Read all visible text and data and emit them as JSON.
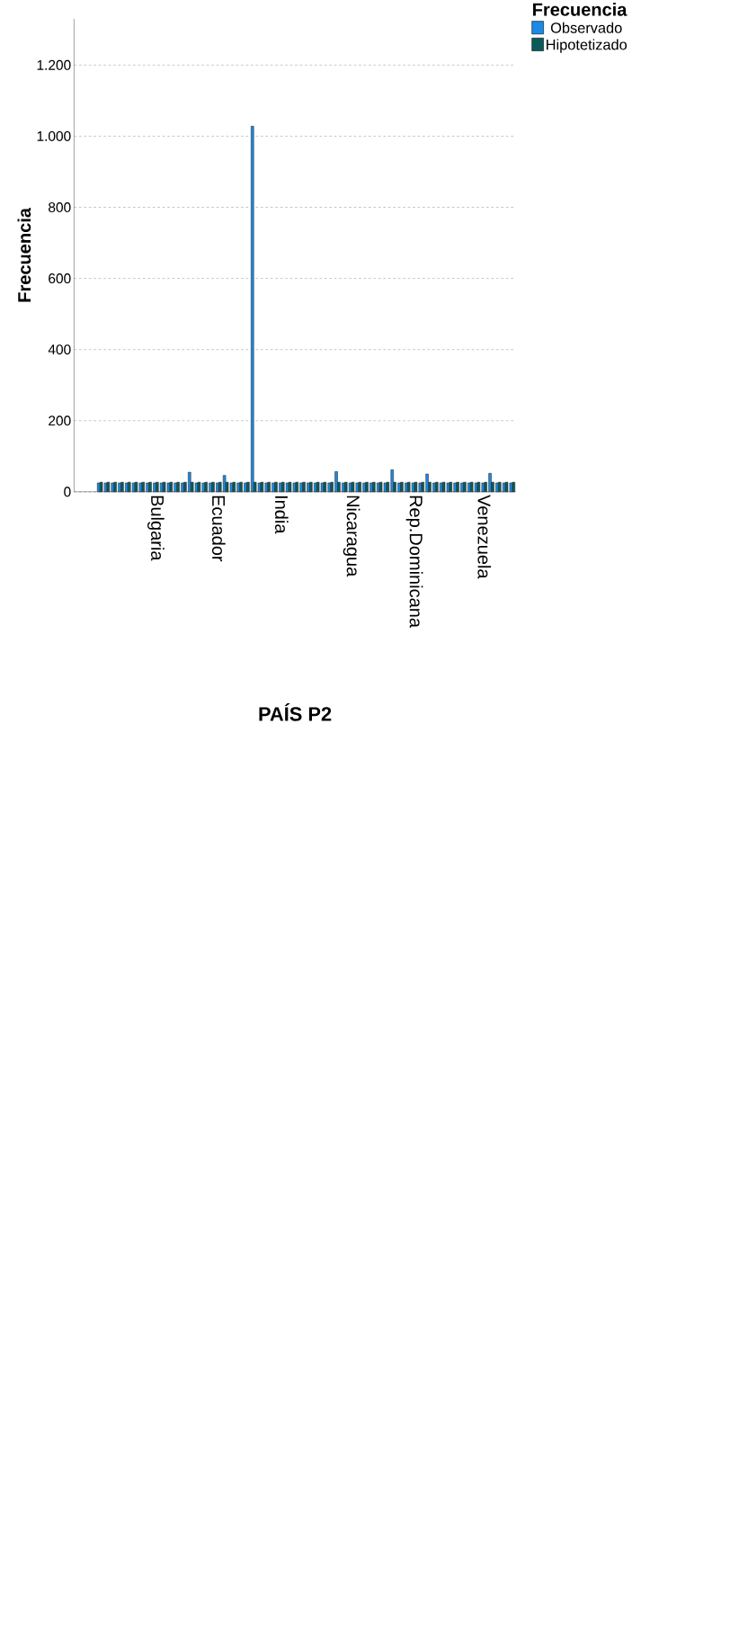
{
  "chart_data": {
    "type": "bar",
    "xlabel": "PAÍS P2",
    "ylabel": "Frecuencia",
    "legend_title": "Frecuencia",
    "legend": "top right",
    "grid": "y",
    "categories": [
      null,
      null,
      null,
      null,
      null,
      null,
      null,
      null,
      "Bulgaria",
      null,
      null,
      null,
      null,
      null,
      null,
      null,
      null,
      "Ecuador",
      null,
      null,
      null,
      null,
      null,
      null,
      null,
      null,
      "India",
      null,
      null,
      null,
      null,
      null,
      null,
      null,
      null,
      null,
      "Nicaragua",
      null,
      null,
      null,
      null,
      null,
      null,
      null,
      null,
      "Rep.Dominicana",
      null,
      null,
      null,
      null,
      null,
      null,
      null,
      null,
      null,
      "Venezuela",
      null,
      null,
      null,
      null
    ],
    "ylim": [
      0,
      1330
    ],
    "yticks": [
      0,
      200,
      400,
      600,
      800,
      {
        "value": 1000,
        "label": "1.000"
      },
      {
        "value": 1200,
        "label": "1.200"
      }
    ],
    "series": [
      {
        "name": "Observado",
        "color": "#1a8ae6",
        "values": [
          25,
          25,
          25,
          25,
          25,
          25,
          25,
          25,
          25,
          25,
          25,
          25,
          25,
          55,
          25,
          25,
          25,
          25,
          46,
          25,
          25,
          25,
          1028,
          25,
          25,
          25,
          25,
          25,
          25,
          25,
          25,
          25,
          25,
          25,
          57,
          25,
          25,
          25,
          25,
          25,
          25,
          25,
          62,
          25,
          25,
          25,
          25,
          50,
          25,
          25,
          25,
          25,
          25,
          25,
          25,
          25,
          52,
          25,
          25,
          25
        ]
      },
      {
        "name": "Hipotetizado",
        "color": "#0b5a5a",
        "values": [
          27,
          27,
          27,
          27,
          27,
          27,
          27,
          27,
          27,
          27,
          27,
          27,
          27,
          27,
          27,
          27,
          27,
          27,
          27,
          27,
          27,
          27,
          27,
          27,
          27,
          27,
          27,
          27,
          27,
          27,
          27,
          27,
          27,
          27,
          27,
          27,
          27,
          27,
          27,
          27,
          27,
          27,
          27,
          27,
          27,
          27,
          27,
          27,
          27,
          27,
          27,
          27,
          27,
          27,
          27,
          27,
          27,
          27,
          27,
          27
        ]
      }
    ]
  }
}
